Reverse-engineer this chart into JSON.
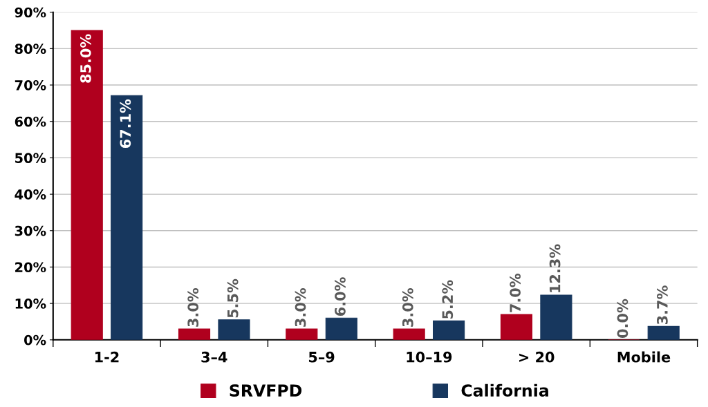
{
  "chart_data": {
    "type": "bar",
    "categories": [
      "1-2",
      "3–4",
      "5–9",
      "10–19",
      "> 20",
      "Mobile"
    ],
    "series": [
      {
        "name": "SRVFPD",
        "color": "#b0001e",
        "values": [
          85.0,
          3.0,
          3.0,
          3.0,
          7.0,
          0.0
        ],
        "value_labels": [
          "85.0%",
          "3.0%",
          "3.0%",
          "3.0%",
          "7.0%",
          "0.0%"
        ]
      },
      {
        "name": "California",
        "color": "#17375e",
        "values": [
          67.1,
          5.5,
          6.0,
          5.2,
          12.3,
          3.7
        ],
        "value_labels": [
          "67.1%",
          "5.5%",
          "6.0%",
          "5.2%",
          "12.3%",
          "3.7%"
        ]
      }
    ],
    "ylim": [
      0,
      90
    ],
    "yticks": [
      {
        "value": 0,
        "label": "0%"
      },
      {
        "value": 10,
        "label": "10%"
      },
      {
        "value": 20,
        "label": "20%"
      },
      {
        "value": 30,
        "label": "30%"
      },
      {
        "value": 40,
        "label": "40%"
      },
      {
        "value": 50,
        "label": "50%"
      },
      {
        "value": 60,
        "label": "60%"
      },
      {
        "value": 70,
        "label": "70%"
      },
      {
        "value": 80,
        "label": "80%"
      },
      {
        "value": 90,
        "label": "90%"
      }
    ],
    "grid": "y",
    "legend": "bottom"
  }
}
